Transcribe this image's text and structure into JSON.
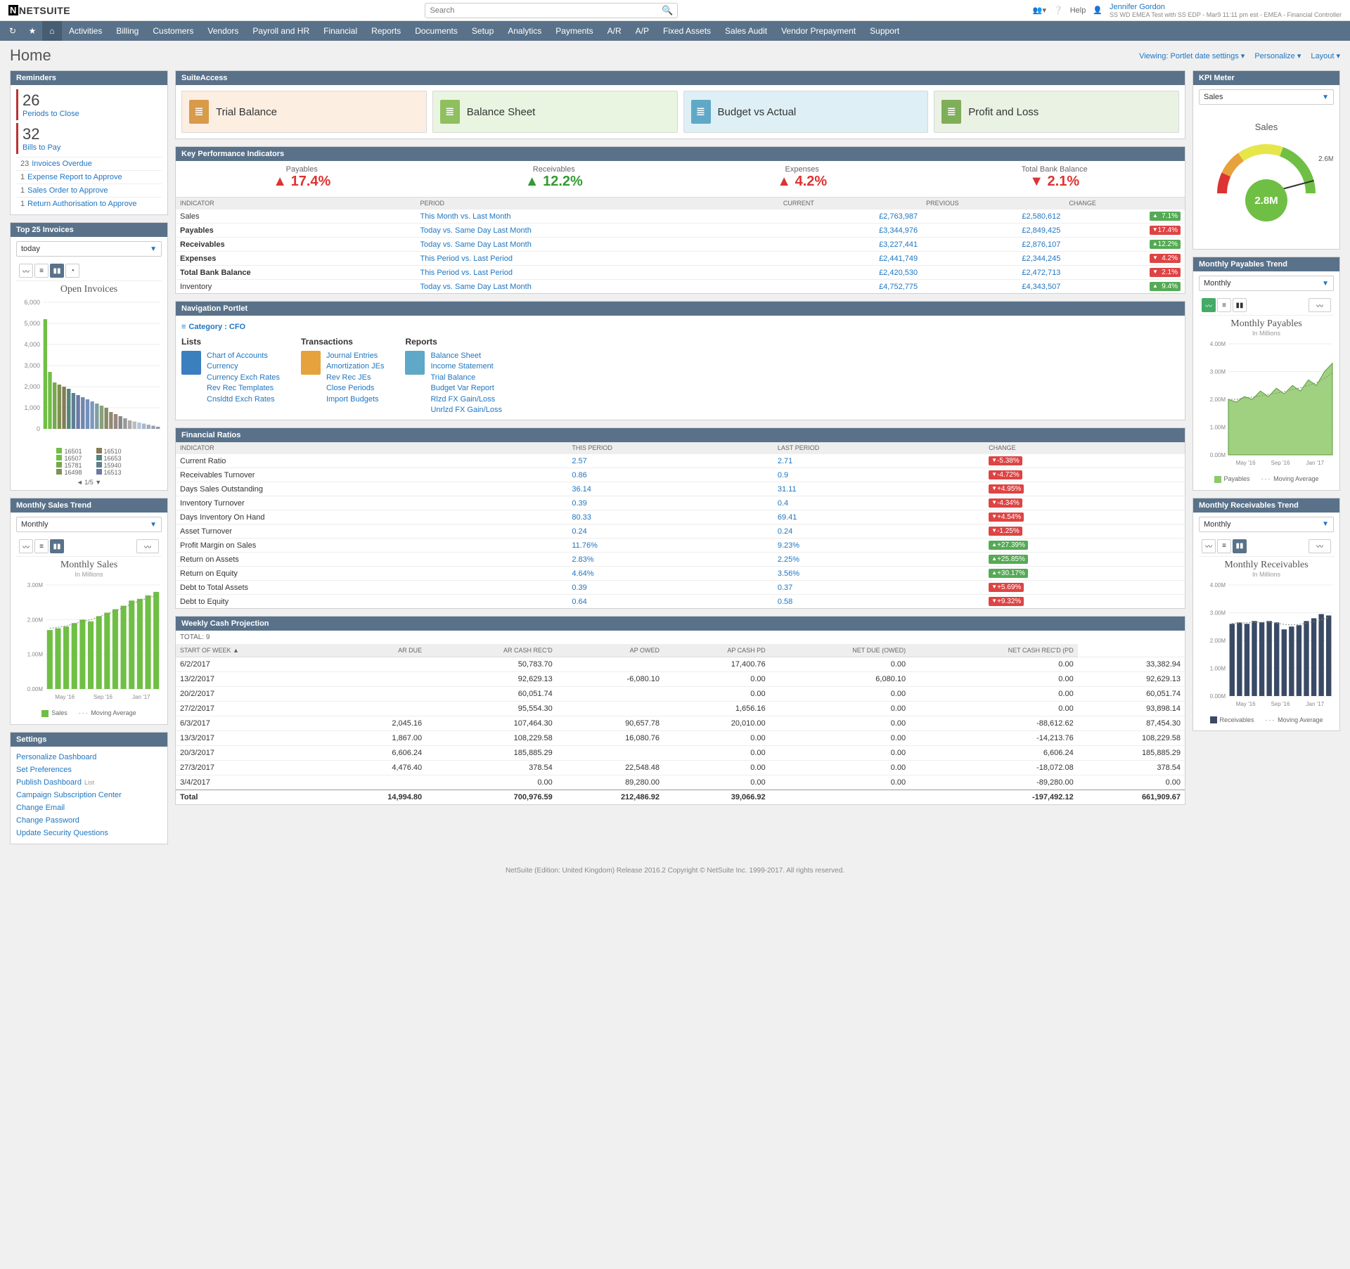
{
  "header": {
    "logo": "NETSUITE",
    "search_placeholder": "Search",
    "help": "Help",
    "user_name": "Jennifer Gordon",
    "user_sub": "SS WD EMEA Test with SS EDP - Mar9 11:11 pm est - EMEA - Financial Controller"
  },
  "nav": [
    "Activities",
    "Billing",
    "Customers",
    "Vendors",
    "Payroll and HR",
    "Financial",
    "Reports",
    "Documents",
    "Setup",
    "Analytics",
    "Payments",
    "A/R",
    "A/P",
    "Fixed Assets",
    "Sales Audit",
    "Vendor Prepayment",
    "Support"
  ],
  "page_title": "Home",
  "page_actions": {
    "viewing": "Viewing: Portlet date settings",
    "personalize": "Personalize",
    "layout": "Layout"
  },
  "reminders": {
    "title": "Reminders",
    "big": [
      {
        "n": "26",
        "t": "Periods to Close"
      },
      {
        "n": "32",
        "t": "Bills to Pay"
      }
    ],
    "small": [
      {
        "c": "23",
        "t": "Invoices Overdue"
      },
      {
        "c": "1",
        "t": "Expense Report to Approve"
      },
      {
        "c": "1",
        "t": "Sales Order to Approve"
      },
      {
        "c": "1",
        "t": "Return Authorisation to Approve"
      }
    ]
  },
  "top25": {
    "title": "Top 25 Invoices",
    "period": "today",
    "chart_title": "Open Invoices",
    "y_ticks": [
      "6,000",
      "5,000",
      "4,000",
      "3,000",
      "2,000",
      "1,000",
      "0"
    ],
    "bars": [
      5200,
      2700,
      2200,
      2100,
      2000,
      1900,
      1700,
      1600,
      1500,
      1400,
      1300,
      1200,
      1100,
      1000,
      800,
      700,
      600,
      500,
      400,
      350,
      300,
      250,
      200,
      150,
      100
    ],
    "bar_colors": [
      "#6fbf44",
      "#6fbf44",
      "#77a84a",
      "#7f9150",
      "#877a56",
      "#53857a",
      "#5e7f8f",
      "#6a7aa4",
      "#6f85af",
      "#748fb9",
      "#7a99c3",
      "#809d9f",
      "#86a17b",
      "#8c8a66",
      "#928973",
      "#998881",
      "#888",
      "#999",
      "#aaa",
      "#bbb",
      "#b0c4de",
      "#a8b8c8",
      "#9fadba",
      "#96a1ab",
      "#8e969d"
    ],
    "legend_items": [
      "16501",
      "16507",
      "15781",
      "16498",
      "16510",
      "16653",
      "15940",
      "16513"
    ],
    "legend_page": "1/5"
  },
  "monthly_sales": {
    "title": "Monthly Sales Trend",
    "period": "Monthly",
    "chart_title": "Monthly Sales",
    "chart_sub": "In Millions",
    "y_ticks": [
      "3.00M",
      "2.00M",
      "1.00M",
      "0.00M"
    ],
    "x_ticks": [
      "May '16",
      "Sep '16",
      "Jan '17"
    ],
    "bars": [
      1.7,
      1.75,
      1.8,
      1.9,
      2.0,
      1.95,
      2.1,
      2.2,
      2.3,
      2.4,
      2.55,
      2.6,
      2.7,
      2.8
    ],
    "bar_color": "#6fbf44",
    "ma": [
      1.75,
      1.78,
      1.82,
      1.88,
      1.95,
      2.0,
      2.08,
      2.16,
      2.25,
      2.35,
      2.45,
      2.55,
      2.62,
      2.7
    ],
    "legend_series": "Sales",
    "legend_ma": "Moving Average"
  },
  "settings": {
    "title": "Settings",
    "links": [
      "Personalize Dashboard",
      "Set Preferences",
      "Publish Dashboard",
      "Campaign Subscription Center",
      "Change Email",
      "Change Password",
      "Update Security Questions"
    ],
    "publish_tag": "List"
  },
  "suiteaccess": {
    "title": "SuiteAccess",
    "cards": [
      {
        "label": "Trial Balance",
        "bg": "#fdeee2",
        "icon_bg": "#d89b4a"
      },
      {
        "label": "Balance Sheet",
        "bg": "#e9f5e0",
        "icon_bg": "#8fbf5f"
      },
      {
        "label": "Budget vs Actual",
        "bg": "#def0f5",
        "icon_bg": "#5fa8c7"
      },
      {
        "label": "Profit and Loss",
        "bg": "#eaf2e3",
        "icon_bg": "#7fae59"
      }
    ]
  },
  "kpi": {
    "title": "Key Performance Indicators",
    "top": [
      {
        "label": "Payables",
        "val": "17.4%",
        "dir": "up",
        "color": "#d33"
      },
      {
        "label": "Receivables",
        "val": "12.2%",
        "dir": "up",
        "color": "#393"
      },
      {
        "label": "Expenses",
        "val": "4.2%",
        "dir": "up",
        "color": "#d33"
      },
      {
        "label": "Total Bank Balance",
        "val": "2.1%",
        "dir": "down",
        "color": "#d33"
      }
    ],
    "th": [
      "INDICATOR",
      "PERIOD",
      "CURRENT",
      "PREVIOUS",
      "CHANGE"
    ],
    "rows": [
      {
        "ind": "Sales",
        "per": "This Month vs. Last Month",
        "cur": "£2,763,987",
        "prev": "£2,580,612",
        "chg": "7.1%",
        "dir": "up"
      },
      {
        "ind": "Payables",
        "per": "Today vs. Same Day Last Month",
        "cur": "£3,344,976",
        "prev": "£2,849,425",
        "chg": "17.4%",
        "dir": "down",
        "bold": true
      },
      {
        "ind": "Receivables",
        "per": "Today vs. Same Day Last Month",
        "cur": "£3,227,441",
        "prev": "£2,876,107",
        "chg": "12.2%",
        "dir": "up",
        "bold": true
      },
      {
        "ind": "Expenses",
        "per": "This Period vs. Last Period",
        "cur": "£2,441,749",
        "prev": "£2,344,245",
        "chg": "4.2%",
        "dir": "down",
        "bold": true
      },
      {
        "ind": "Total Bank Balance",
        "per": "This Period vs. Last Period",
        "cur": "£2,420,530",
        "prev": "£2,472,713",
        "chg": "2.1%",
        "dir": "down",
        "bold": true
      },
      {
        "ind": "Inventory",
        "per": "Today vs. Same Day Last Month",
        "cur": "£4,752,775",
        "prev": "£4,343,507",
        "chg": "9.4%",
        "dir": "up"
      }
    ]
  },
  "navportlet": {
    "title": "Navigation Portlet",
    "category": "Category : CFO",
    "cols": [
      {
        "h": "Lists",
        "links": [
          "Chart of Accounts",
          "Currency",
          "Currency Exch Rates",
          "Rev Rec Templates",
          "Cnsldtd Exch Rates"
        ],
        "icon_bg": "#3b7fbf"
      },
      {
        "h": "Transactions",
        "links": [
          "Journal Entries",
          "Amortization JEs",
          "Rev Rec JEs",
          "Close Periods",
          "Import Budgets"
        ],
        "icon_bg": "#e6a23c"
      },
      {
        "h": "Reports",
        "links": [
          "Balance Sheet",
          "Income Statement",
          "Trial Balance",
          "Budget Var Report",
          "Rlzd FX Gain/Loss",
          "Unrlzd FX Gain/Loss"
        ],
        "icon_bg": "#5fa8c7"
      }
    ]
  },
  "finratios": {
    "title": "Financial Ratios",
    "th": [
      "INDICATOR",
      "THIS PERIOD",
      "LAST PERIOD",
      "CHANGE"
    ],
    "rows": [
      {
        "ind": "Current Ratio",
        "tp": "2.57",
        "lp": "2.71",
        "chg": "-5.38%",
        "dir": "down"
      },
      {
        "ind": "Receivables Turnover",
        "tp": "0.86",
        "lp": "0.9",
        "chg": "-4.72%",
        "dir": "down"
      },
      {
        "ind": "Days Sales Outstanding",
        "tp": "36.14",
        "lp": "31.11",
        "chg": "+4.95%",
        "dir": "down"
      },
      {
        "ind": "Inventory Turnover",
        "tp": "0.39",
        "lp": "0.4",
        "chg": "-4.34%",
        "dir": "down"
      },
      {
        "ind": "Days Inventory On Hand",
        "tp": "80.33",
        "lp": "69.41",
        "chg": "+4.54%",
        "dir": "down"
      },
      {
        "ind": "Asset Turnover",
        "tp": "0.24",
        "lp": "0.24",
        "chg": "-1.25%",
        "dir": "down"
      },
      {
        "ind": "Profit Margin on Sales",
        "tp": "11.76%",
        "lp": "9.23%",
        "chg": "+27.39%",
        "dir": "up"
      },
      {
        "ind": "Return on Assets",
        "tp": "2.83%",
        "lp": "2.25%",
        "chg": "+25.85%",
        "dir": "up"
      },
      {
        "ind": "Return on Equity",
        "tp": "4.64%",
        "lp": "3.56%",
        "chg": "+30.17%",
        "dir": "up"
      },
      {
        "ind": "Debt to Total Assets",
        "tp": "0.39",
        "lp": "0.37",
        "chg": "+5.69%",
        "dir": "down"
      },
      {
        "ind": "Debt to Equity",
        "tp": "0.64",
        "lp": "0.58",
        "chg": "+9.32%",
        "dir": "down"
      }
    ]
  },
  "cashproj": {
    "title": "Weekly Cash Projection",
    "total_label": "TOTAL: 9",
    "th": [
      "START OF WEEK ▲",
      "AR DUE",
      "AR CASH REC'D",
      "AP OWED",
      "AP CASH PD",
      "NET DUE (OWED)",
      "NET CASH REC'D (PD"
    ],
    "rows": [
      [
        "6/2/2017",
        "",
        "50,783.70",
        "",
        "17,400.76",
        "0.00",
        "0.00",
        "33,382.94"
      ],
      [
        "13/2/2017",
        "",
        "92,629.13",
        "-6,080.10",
        "0.00",
        "6,080.10",
        "0.00",
        "92,629.13"
      ],
      [
        "20/2/2017",
        "",
        "60,051.74",
        "",
        "0.00",
        "0.00",
        "0.00",
        "60,051.74"
      ],
      [
        "27/2/2017",
        "",
        "95,554.30",
        "",
        "1,656.16",
        "0.00",
        "0.00",
        "93,898.14"
      ],
      [
        "6/3/2017",
        "2,045.16",
        "107,464.30",
        "90,657.78",
        "20,010.00",
        "0.00",
        "-88,612.62",
        "87,454.30"
      ],
      [
        "13/3/2017",
        "1,867.00",
        "108,229.58",
        "16,080.76",
        "0.00",
        "0.00",
        "-14,213.76",
        "108,229.58"
      ],
      [
        "20/3/2017",
        "6,606.24",
        "185,885.29",
        "",
        "0.00",
        "0.00",
        "6,606.24",
        "185,885.29"
      ],
      [
        "27/3/2017",
        "4,476.40",
        "378.54",
        "22,548.48",
        "0.00",
        "0.00",
        "-18,072.08",
        "378.54"
      ],
      [
        "3/4/2017",
        "",
        "0.00",
        "89,280.00",
        "0.00",
        "0.00",
        "-89,280.00",
        "0.00"
      ]
    ],
    "total": [
      "Total",
      "14,994.80",
      "700,976.59",
      "212,486.92",
      "39,066.92",
      "",
      "-197,492.12",
      "661,909.67"
    ]
  },
  "kpimeter": {
    "title": "KPI Meter",
    "select": "Sales",
    "label": "Sales",
    "max": "2.6M",
    "center": "2.8M",
    "center_bg": "#6fbf44"
  },
  "payables_trend": {
    "title": "Monthly Payables Trend",
    "period": "Monthly",
    "chart_title": "Monthly Payables",
    "chart_sub": "In Millions",
    "y_ticks": [
      "4.00M",
      "3.00M",
      "2.00M",
      "1.00M",
      "0.00M"
    ],
    "x_ticks": [
      "May '16",
      "Sep '16",
      "Jan '17"
    ],
    "area": [
      2.0,
      1.9,
      2.1,
      2.0,
      2.3,
      2.1,
      2.4,
      2.2,
      2.5,
      2.3,
      2.7,
      2.5,
      3.0,
      3.3
    ],
    "ma": [
      2.0,
      2.0,
      2.05,
      2.08,
      2.12,
      2.18,
      2.22,
      2.28,
      2.35,
      2.42,
      2.5,
      2.6,
      2.75,
      2.95
    ],
    "fill": "#8fc96b",
    "legend_series": "Payables",
    "legend_ma": "Moving Average"
  },
  "receivables_trend": {
    "title": "Monthly Receivables Trend",
    "period": "Monthly",
    "chart_title": "Monthly Receivables",
    "chart_sub": "In Millions",
    "y_ticks": [
      "4.00M",
      "3.00M",
      "2.00M",
      "1.00M",
      "0.00M"
    ],
    "x_ticks": [
      "May '16",
      "Sep '16",
      "Jan '17"
    ],
    "bars": [
      2.6,
      2.65,
      2.6,
      2.7,
      2.65,
      2.7,
      2.65,
      2.4,
      2.5,
      2.55,
      2.7,
      2.8,
      2.95,
      2.9
    ],
    "bar_color": "#3a4a66",
    "ma": [
      2.62,
      2.63,
      2.64,
      2.65,
      2.66,
      2.66,
      2.62,
      2.58,
      2.56,
      2.58,
      2.62,
      2.68,
      2.75,
      2.82
    ],
    "legend_series": "Receivables",
    "legend_ma": "Moving Average"
  },
  "footer": "NetSuite (Edition: United Kingdom) Release 2016.2 Copyright © NetSuite Inc. 1999-2017. All rights reserved."
}
